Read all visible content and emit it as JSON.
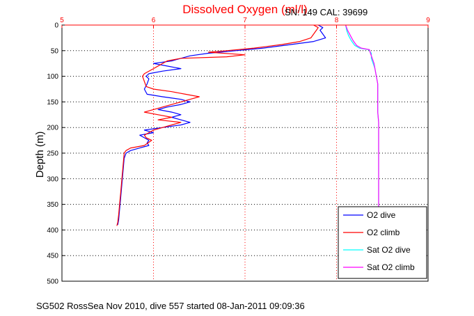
{
  "chart_data": {
    "type": "line",
    "title": "Dissolved Oxygen (ml/l)",
    "annotation": "SN: 149  CAL: 39699",
    "footer": "SG502 RossSea Nov 2010, dive 557 started 08-Jan-2011 09:09:36",
    "xlabel": "",
    "ylabel": "Depth (m)",
    "xlim": [
      5,
      9
    ],
    "ylim": [
      0,
      500
    ],
    "y_reversed": true,
    "x_ticks": [
      5,
      6,
      7,
      8,
      9
    ],
    "y_ticks": [
      0,
      50,
      100,
      150,
      200,
      250,
      300,
      350,
      400,
      450,
      500
    ],
    "grid": true,
    "legend_position": "bottom-right",
    "colors": {
      "title": "#ff0000",
      "x_axis": "#ff0000",
      "y_axis": "#000000",
      "grid_x": "#ff0000",
      "grid_y": "#000000"
    },
    "series": [
      {
        "name": "O2 dive",
        "color": "#0000ff",
        "points": [
          [
            7.8,
            0
          ],
          [
            7.85,
            5
          ],
          [
            7.82,
            10
          ],
          [
            7.88,
            25
          ],
          [
            7.75,
            32
          ],
          [
            7.5,
            38
          ],
          [
            7.2,
            45
          ],
          [
            6.9,
            50
          ],
          [
            6.6,
            55
          ],
          [
            6.4,
            60
          ],
          [
            6.3,
            65
          ],
          [
            6.2,
            70
          ],
          [
            6.0,
            75
          ],
          [
            6.15,
            80
          ],
          [
            6.3,
            85
          ],
          [
            6.1,
            90
          ],
          [
            5.95,
            95
          ],
          [
            5.92,
            100
          ],
          [
            5.95,
            105
          ],
          [
            5.93,
            115
          ],
          [
            5.9,
            125
          ],
          [
            5.93,
            135
          ],
          [
            6.1,
            140
          ],
          [
            6.3,
            145
          ],
          [
            6.4,
            150
          ],
          [
            6.3,
            155
          ],
          [
            6.15,
            160
          ],
          [
            6.05,
            165
          ],
          [
            6.2,
            170
          ],
          [
            6.3,
            175
          ],
          [
            6.2,
            180
          ],
          [
            6.3,
            185
          ],
          [
            6.4,
            190
          ],
          [
            6.3,
            195
          ],
          [
            6.1,
            200
          ],
          [
            5.9,
            205
          ],
          [
            6.0,
            210
          ],
          [
            5.85,
            215
          ],
          [
            5.9,
            220
          ],
          [
            5.95,
            225
          ],
          [
            5.93,
            230
          ],
          [
            5.95,
            235
          ],
          [
            5.85,
            240
          ],
          [
            5.75,
            245
          ],
          [
            5.7,
            250
          ],
          [
            5.68,
            260
          ],
          [
            5.67,
            280
          ],
          [
            5.66,
            300
          ],
          [
            5.65,
            320
          ],
          [
            5.64,
            340
          ],
          [
            5.63,
            360
          ],
          [
            5.62,
            380
          ],
          [
            5.61,
            390
          ]
        ]
      },
      {
        "name": "O2 climb",
        "color": "#ff0000",
        "points": [
          [
            7.75,
            0
          ],
          [
            7.8,
            5
          ],
          [
            7.78,
            10
          ],
          [
            7.72,
            25
          ],
          [
            7.6,
            32
          ],
          [
            7.4,
            38
          ],
          [
            7.1,
            45
          ],
          [
            6.8,
            50
          ],
          [
            6.6,
            53
          ],
          [
            7.0,
            58
          ],
          [
            6.8,
            62
          ],
          [
            6.3,
            65
          ],
          [
            6.15,
            70
          ],
          [
            6.1,
            75
          ],
          [
            6.0,
            85
          ],
          [
            5.9,
            95
          ],
          [
            5.88,
            100
          ],
          [
            5.9,
            110
          ],
          [
            5.92,
            120
          ],
          [
            6.0,
            125
          ],
          [
            6.2,
            130
          ],
          [
            6.35,
            135
          ],
          [
            6.5,
            140
          ],
          [
            6.4,
            145
          ],
          [
            6.2,
            155
          ],
          [
            6.0,
            165
          ],
          [
            5.9,
            170
          ],
          [
            6.05,
            175
          ],
          [
            6.2,
            180
          ],
          [
            6.05,
            185
          ],
          [
            6.3,
            190
          ],
          [
            6.2,
            195
          ],
          [
            6.1,
            200
          ],
          [
            6.0,
            205
          ],
          [
            5.95,
            210
          ],
          [
            5.9,
            215
          ],
          [
            5.92,
            220
          ],
          [
            5.98,
            225
          ],
          [
            5.9,
            235
          ],
          [
            5.75,
            240
          ],
          [
            5.7,
            245
          ],
          [
            5.68,
            250
          ],
          [
            5.67,
            270
          ],
          [
            5.66,
            290
          ],
          [
            5.65,
            310
          ],
          [
            5.64,
            330
          ],
          [
            5.63,
            350
          ],
          [
            5.62,
            370
          ],
          [
            5.61,
            385
          ],
          [
            5.6,
            392
          ]
        ]
      },
      {
        "name": "Sat O2 dive",
        "color": "#00ffff",
        "points": [
          [
            8.1,
            0
          ],
          [
            8.11,
            10
          ],
          [
            8.13,
            20
          ],
          [
            8.16,
            30
          ],
          [
            8.2,
            40
          ],
          [
            8.25,
            45
          ],
          [
            8.35,
            48
          ],
          [
            8.38,
            55
          ],
          [
            8.38,
            65
          ],
          [
            8.4,
            75
          ],
          [
            8.42,
            85
          ],
          [
            8.43,
            95
          ],
          [
            8.44,
            105
          ],
          [
            8.45,
            115
          ],
          [
            8.45,
            130
          ],
          [
            8.45,
            150
          ],
          [
            8.45,
            170
          ],
          [
            8.46,
            190
          ],
          [
            8.46,
            210
          ],
          [
            8.46,
            240
          ],
          [
            8.46,
            270
          ],
          [
            8.46,
            300
          ],
          [
            8.46,
            330
          ],
          [
            8.46,
            355
          ]
        ]
      },
      {
        "name": "Sat O2 climb",
        "color": "#ff00ff",
        "points": [
          [
            8.1,
            0
          ],
          [
            8.12,
            10
          ],
          [
            8.15,
            20
          ],
          [
            8.18,
            30
          ],
          [
            8.22,
            40
          ],
          [
            8.27,
            45
          ],
          [
            8.36,
            48
          ],
          [
            8.37,
            55
          ],
          [
            8.39,
            65
          ],
          [
            8.41,
            75
          ],
          [
            8.42,
            85
          ],
          [
            8.43,
            95
          ],
          [
            8.44,
            105
          ],
          [
            8.45,
            115
          ],
          [
            8.45,
            130
          ],
          [
            8.45,
            150
          ],
          [
            8.45,
            170
          ],
          [
            8.46,
            190
          ],
          [
            8.46,
            210
          ],
          [
            8.46,
            240
          ],
          [
            8.46,
            270
          ],
          [
            8.46,
            300
          ],
          [
            8.46,
            330
          ],
          [
            8.46,
            355
          ]
        ]
      }
    ]
  }
}
